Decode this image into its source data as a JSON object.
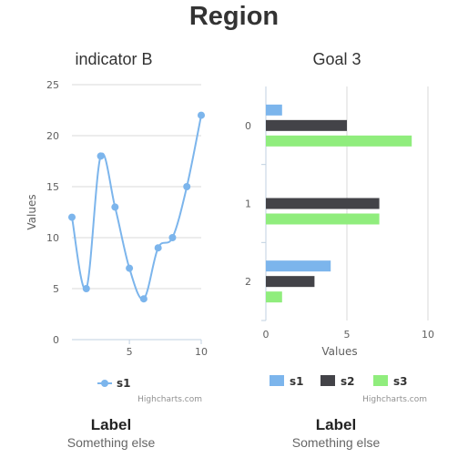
{
  "page": {
    "title": "Region"
  },
  "chart_data": [
    {
      "type": "line",
      "title": "indicator B",
      "ylabel": "Values",
      "xlabel": "",
      "x": [
        1,
        2,
        3,
        4,
        5,
        6,
        7,
        8,
        9,
        10
      ],
      "series": [
        {
          "name": "s1",
          "values": [
            12,
            5,
            18,
            13,
            7,
            4,
            9,
            10,
            15,
            22
          ]
        }
      ],
      "xticks": [
        5,
        10
      ],
      "yticks": [
        0,
        5,
        10,
        15,
        20,
        25
      ],
      "ylim": [
        0,
        25
      ],
      "xlim": [
        1,
        10
      ],
      "smooth": true,
      "grid": "horizontal",
      "legend": "bottom-center",
      "credit": "Highcharts.com",
      "colors": {
        "s1": "#7cb5ec"
      }
    },
    {
      "type": "bar",
      "orientation": "horizontal",
      "title": "Goal 3",
      "xlabel": "Values",
      "categories": [
        "0",
        "1",
        "2"
      ],
      "series": [
        {
          "name": "s1",
          "values": [
            1,
            0,
            4
          ]
        },
        {
          "name": "s2",
          "values": [
            5,
            7,
            3
          ]
        },
        {
          "name": "s3",
          "values": [
            9,
            7,
            1
          ]
        }
      ],
      "xticks": [
        0,
        5,
        10
      ],
      "xlim": [
        0,
        10
      ],
      "grid": "vertical",
      "legend": "bottom-center",
      "credit": "Highcharts.com",
      "colors": {
        "s1": "#7cb5ec",
        "s2": "#434348",
        "s3": "#90ed7d"
      }
    }
  ],
  "labels": [
    {
      "label": "Label",
      "sublabel": "Something else"
    },
    {
      "label": "Label",
      "sublabel": "Something else"
    }
  ]
}
